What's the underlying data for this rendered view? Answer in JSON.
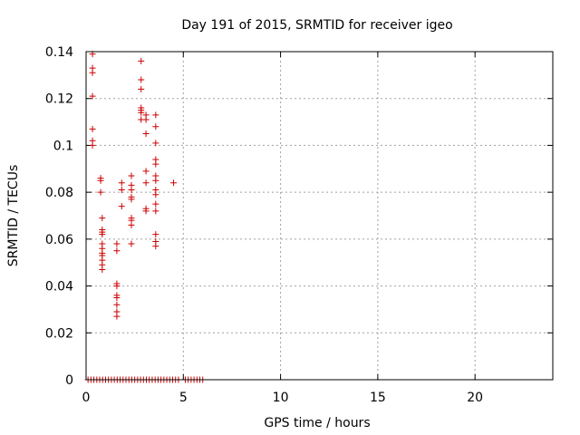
{
  "chart_data": {
    "type": "scatter",
    "title": "Day 191 of 2015, SRMTID for receiver igeo",
    "xlabel": "GPS time / hours",
    "ylabel": "SRMTID / TECUs",
    "xlim": [
      0,
      24
    ],
    "ylim": [
      0,
      0.14
    ],
    "xticks": [
      0,
      5,
      10,
      15,
      20
    ],
    "yticks": [
      0,
      0.02,
      0.04,
      0.06,
      0.08,
      0.1,
      0.12,
      0.14
    ],
    "xtick_labels": [
      "0",
      "5",
      "10",
      "15",
      "20"
    ],
    "ytick_labels": [
      "0",
      "0.02",
      "0.04",
      "0.06",
      "0.08",
      "0.1",
      "0.12",
      "0.14"
    ],
    "grid": true,
    "marker": "+",
    "color": "#cc0000",
    "series": [
      {
        "points": [
          [
            0.33,
            0.139
          ],
          [
            0.33,
            0.133
          ],
          [
            0.33,
            0.131
          ],
          [
            0.33,
            0.121
          ],
          [
            0.33,
            0.107
          ],
          [
            0.33,
            0.102
          ],
          [
            0.33,
            0.1
          ],
          [
            0.75,
            0.086
          ],
          [
            0.75,
            0.085
          ],
          [
            0.75,
            0.08
          ],
          [
            0.83,
            0.069
          ],
          [
            0.83,
            0.064
          ],
          [
            0.83,
            0.063
          ],
          [
            0.83,
            0.062
          ],
          [
            0.83,
            0.058
          ],
          [
            0.83,
            0.056
          ],
          [
            0.83,
            0.054
          ],
          [
            0.83,
            0.053
          ],
          [
            0.83,
            0.051
          ],
          [
            0.83,
            0.049
          ],
          [
            0.83,
            0.047
          ],
          [
            1.58,
            0.058
          ],
          [
            1.58,
            0.055
          ],
          [
            1.58,
            0.041
          ],
          [
            1.58,
            0.04
          ],
          [
            1.58,
            0.036
          ],
          [
            1.58,
            0.035
          ],
          [
            1.58,
            0.032
          ],
          [
            1.58,
            0.029
          ],
          [
            1.58,
            0.027
          ],
          [
            1.83,
            0.084
          ],
          [
            1.83,
            0.081
          ],
          [
            1.83,
            0.074
          ],
          [
            2.33,
            0.087
          ],
          [
            2.33,
            0.083
          ],
          [
            2.33,
            0.081
          ],
          [
            2.33,
            0.078
          ],
          [
            2.33,
            0.077
          ],
          [
            2.33,
            0.069
          ],
          [
            2.33,
            0.068
          ],
          [
            2.33,
            0.066
          ],
          [
            2.33,
            0.058
          ],
          [
            2.83,
            0.136
          ],
          [
            2.83,
            0.128
          ],
          [
            2.83,
            0.124
          ],
          [
            2.83,
            0.116
          ],
          [
            2.83,
            0.115
          ],
          [
            2.83,
            0.114
          ],
          [
            2.83,
            0.111
          ],
          [
            3.08,
            0.113
          ],
          [
            3.08,
            0.111
          ],
          [
            3.08,
            0.105
          ],
          [
            3.08,
            0.089
          ],
          [
            3.08,
            0.084
          ],
          [
            3.08,
            0.073
          ],
          [
            3.08,
            0.072
          ],
          [
            3.58,
            0.113
          ],
          [
            3.58,
            0.108
          ],
          [
            3.58,
            0.101
          ],
          [
            3.58,
            0.094
          ],
          [
            3.58,
            0.092
          ],
          [
            3.58,
            0.087
          ],
          [
            3.58,
            0.085
          ],
          [
            3.58,
            0.081
          ],
          [
            3.58,
            0.079
          ],
          [
            3.58,
            0.075
          ],
          [
            3.58,
            0.072
          ],
          [
            3.58,
            0.062
          ],
          [
            3.58,
            0.059
          ],
          [
            3.58,
            0.057
          ],
          [
            4.5,
            0.084
          ],
          [
            0.1,
            0
          ],
          [
            0.25,
            0
          ],
          [
            0.4,
            0
          ],
          [
            0.55,
            0
          ],
          [
            0.7,
            0
          ],
          [
            0.85,
            0
          ],
          [
            1.0,
            0
          ],
          [
            1.15,
            0
          ],
          [
            1.3,
            0
          ],
          [
            1.45,
            0
          ],
          [
            1.6,
            0
          ],
          [
            1.75,
            0
          ],
          [
            1.9,
            0
          ],
          [
            2.05,
            0
          ],
          [
            2.2,
            0
          ],
          [
            2.35,
            0
          ],
          [
            2.5,
            0
          ],
          [
            2.65,
            0
          ],
          [
            2.8,
            0
          ],
          [
            2.95,
            0
          ],
          [
            3.1,
            0
          ],
          [
            3.25,
            0
          ],
          [
            3.4,
            0
          ],
          [
            3.55,
            0
          ],
          [
            3.7,
            0
          ],
          [
            3.85,
            0
          ],
          [
            4.0,
            0
          ],
          [
            4.15,
            0
          ],
          [
            4.3,
            0
          ],
          [
            4.45,
            0
          ],
          [
            4.6,
            0
          ],
          [
            4.75,
            0
          ],
          [
            5.1,
            0
          ],
          [
            5.25,
            0
          ],
          [
            5.4,
            0
          ],
          [
            5.55,
            0
          ],
          [
            5.7,
            0
          ],
          [
            5.85,
            0
          ],
          [
            6.0,
            0
          ]
        ]
      }
    ]
  }
}
